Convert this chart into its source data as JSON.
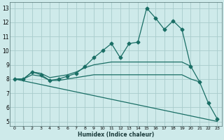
{
  "xlabel": "Humidex (Indice chaleur)",
  "bg_color": "#ceeaea",
  "grid_color": "#a8cccc",
  "line_color": "#1a6e65",
  "xlim_min": -0.5,
  "xlim_max": 23.5,
  "ylim_min": 4.7,
  "ylim_max": 13.4,
  "xticks": [
    0,
    1,
    2,
    3,
    4,
    5,
    6,
    7,
    8,
    9,
    10,
    11,
    12,
    13,
    14,
    15,
    16,
    17,
    18,
    19,
    20,
    21,
    22,
    23
  ],
  "yticks": [
    5,
    6,
    7,
    8,
    9,
    10,
    11,
    12,
    13
  ],
  "lines": [
    {
      "x": [
        0,
        1,
        2,
        3,
        4,
        5,
        6,
        7,
        8,
        9,
        10,
        11,
        12,
        13,
        14,
        15,
        16,
        17,
        18,
        19,
        20,
        21,
        22,
        23
      ],
      "y": [
        8.0,
        8.0,
        8.5,
        8.3,
        7.9,
        8.0,
        8.2,
        8.4,
        8.9,
        9.5,
        10.0,
        10.5,
        9.5,
        10.5,
        10.6,
        13.0,
        12.3,
        11.5,
        12.1,
        11.5,
        8.9,
        7.8,
        6.3,
        5.2
      ],
      "marker": "D",
      "markersize": 2.5,
      "lw": 0.9
    },
    {
      "x": [
        0,
        1,
        2,
        3,
        4,
        5,
        6,
        7,
        8,
        9,
        10,
        11,
        12,
        13,
        14,
        15,
        16,
        17,
        18,
        19,
        20
      ],
      "y": [
        8.0,
        8.0,
        8.5,
        8.4,
        8.1,
        8.2,
        8.3,
        8.5,
        8.8,
        9.0,
        9.1,
        9.2,
        9.2,
        9.2,
        9.2,
        9.2,
        9.2,
        9.2,
        9.2,
        9.2,
        8.9
      ],
      "marker": null,
      "markersize": 0,
      "lw": 0.9
    },
    {
      "x": [
        0,
        1,
        2,
        3,
        4,
        5,
        6,
        7,
        8,
        9,
        10,
        11,
        12,
        13,
        14,
        15,
        16,
        17,
        18,
        19,
        20,
        21
      ],
      "y": [
        8.0,
        8.0,
        8.3,
        8.2,
        7.9,
        7.9,
        8.0,
        8.1,
        8.2,
        8.3,
        8.3,
        8.3,
        8.3,
        8.3,
        8.3,
        8.3,
        8.3,
        8.3,
        8.3,
        8.3,
        8.0,
        7.8
      ],
      "marker": null,
      "markersize": 0,
      "lw": 0.9
    },
    {
      "x": [
        0,
        1,
        2,
        3,
        4,
        5,
        6,
        7,
        8,
        9,
        10,
        11,
        12,
        13,
        14,
        15,
        16,
        17,
        18,
        19,
        20,
        21,
        22,
        23
      ],
      "y": [
        8.0,
        7.87,
        7.74,
        7.61,
        7.48,
        7.35,
        7.22,
        7.09,
        6.96,
        6.83,
        6.7,
        6.57,
        6.44,
        6.31,
        6.18,
        6.05,
        5.92,
        5.79,
        5.66,
        5.53,
        5.4,
        5.27,
        5.14,
        5.01
      ],
      "marker": null,
      "markersize": 0,
      "lw": 0.9
    }
  ]
}
